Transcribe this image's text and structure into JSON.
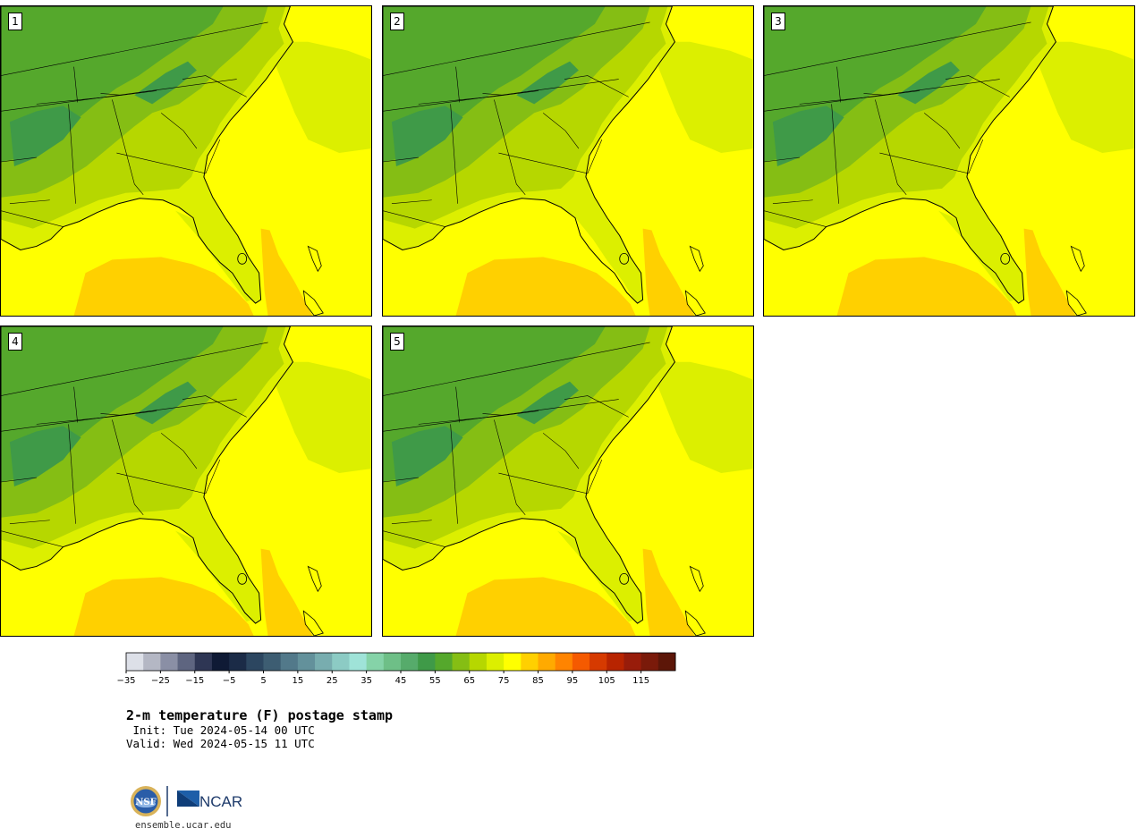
{
  "product": {
    "title": "2-m temperature (F) postage stamp",
    "init": " Init: Tue 2024-05-14 00 UTC",
    "valid": "Valid: Wed 2024-05-15 11 UTC",
    "footer": "ensemble.ucar.edu",
    "logo_text": "NCAR"
  },
  "members": [
    {
      "label": "1"
    },
    {
      "label": "2"
    },
    {
      "label": "3"
    },
    {
      "label": "4"
    },
    {
      "label": "5"
    }
  ],
  "colorbar": {
    "ticks": [
      "−35",
      "−25",
      "−15",
      "−5",
      "5",
      "15",
      "25",
      "35",
      "45",
      "55",
      "65",
      "75",
      "85",
      "95",
      "105",
      "115"
    ],
    "colors": [
      "#dde0e8",
      "#b4b7c4",
      "#8a8fa5",
      "#5e6580",
      "#2e3654",
      "#0f1a35",
      "#1b2b47",
      "#2c4660",
      "#3d5d72",
      "#52798a",
      "#63919b",
      "#78adaf",
      "#8ccbc4",
      "#9fe3d8",
      "#85d3a8",
      "#6ebf87",
      "#56ab6b",
      "#3f9a48",
      "#55a82c",
      "#85be14",
      "#b6d700",
      "#dcef00",
      "#ffff00",
      "#ffd000",
      "#ffaa00",
      "#ff8400",
      "#f55a00",
      "#d63a00",
      "#b82400",
      "#981c0a",
      "#7a1a0a",
      "#5c1608"
    ]
  },
  "temperature_colors": {
    "gulf": "#ffff00",
    "warm_water": "#ffd000",
    "coastal": "#dcef00",
    "lowland": "#b6d700",
    "inland": "#85be14",
    "highland": "#55a82c",
    "mountain": "#3f9a48"
  }
}
